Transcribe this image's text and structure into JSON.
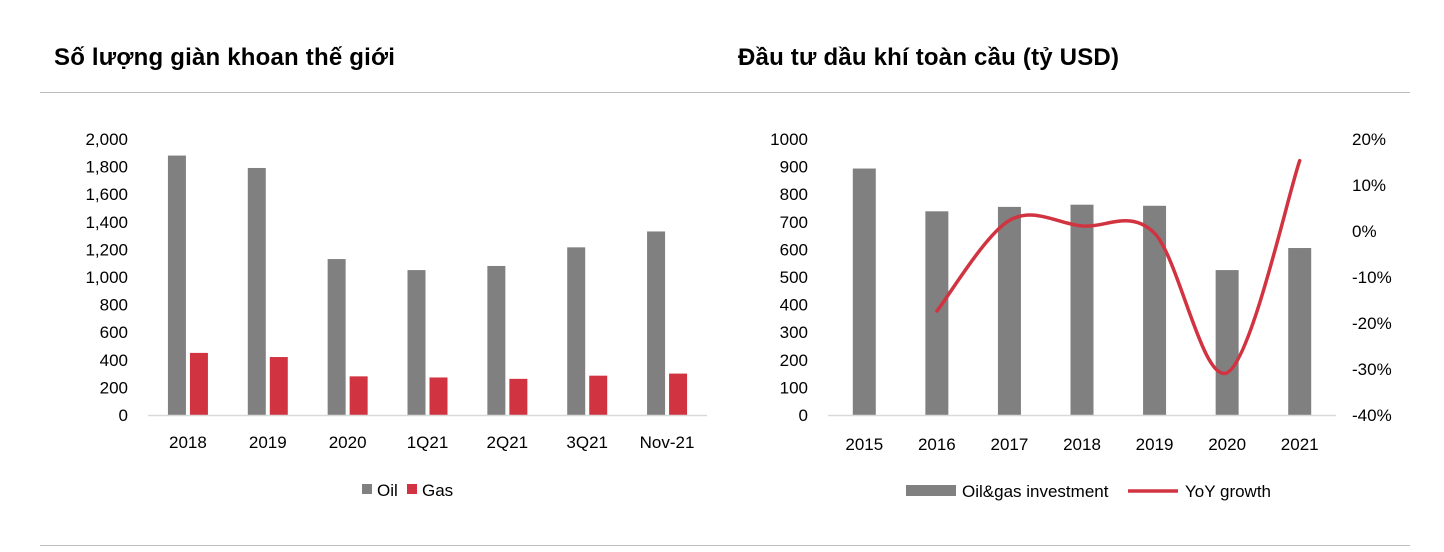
{
  "page": {
    "left_title": "Số lượng giàn khoan thế giới",
    "right_title": "Đầu tư dầu khí toàn cầu (tỷ USD)"
  },
  "colors": {
    "oil": "#808080",
    "gas": "#d13340",
    "yoy": "#d13340",
    "axis": "#d9d9d9"
  },
  "chart_data": [
    {
      "type": "bar",
      "title": "Số lượng giàn khoan thế giới",
      "categories": [
        "2018",
        "2019",
        "2020",
        "1Q21",
        "2Q21",
        "3Q21",
        "Nov-21"
      ],
      "series": [
        {
          "name": "Oil",
          "values": [
            1880,
            1790,
            1130,
            1050,
            1080,
            1215,
            1330
          ]
        },
        {
          "name": "Gas",
          "values": [
            450,
            420,
            280,
            272,
            262,
            285,
            300
          ]
        }
      ],
      "ylim": [
        0,
        2000
      ],
      "yticks": [
        "0",
        "200",
        "400",
        "600",
        "800",
        "1,000",
        "1,200",
        "1,400",
        "1,600",
        "1,800",
        "2,000"
      ],
      "legend": "bottom-center"
    },
    {
      "type": "bar",
      "title": "Đầu tư dầu khí toàn cầu (tỷ USD)",
      "categories": [
        "2015",
        "2016",
        "2017",
        "2018",
        "2019",
        "2020",
        "2021"
      ],
      "series": [
        {
          "name": "Oil&gas investment",
          "type": "bar",
          "axis": "left",
          "values": [
            893,
            738,
            754,
            762,
            758,
            525,
            605
          ]
        },
        {
          "name": "YoY growth",
          "type": "line",
          "axis": "right",
          "values": [
            null,
            -17.4,
            2.3,
            1.1,
            -0.5,
            -30.8,
            15.3
          ]
        }
      ],
      "ylim": [
        0,
        1000
      ],
      "yticks": [
        "0",
        "100",
        "200",
        "300",
        "400",
        "500",
        "600",
        "700",
        "800",
        "900",
        "1000"
      ],
      "y2lim": [
        -40,
        20
      ],
      "y2ticks": [
        "-40%",
        "-30%",
        "-20%",
        "-10%",
        "0%",
        "10%",
        "20%"
      ],
      "legend": "bottom-center"
    }
  ]
}
